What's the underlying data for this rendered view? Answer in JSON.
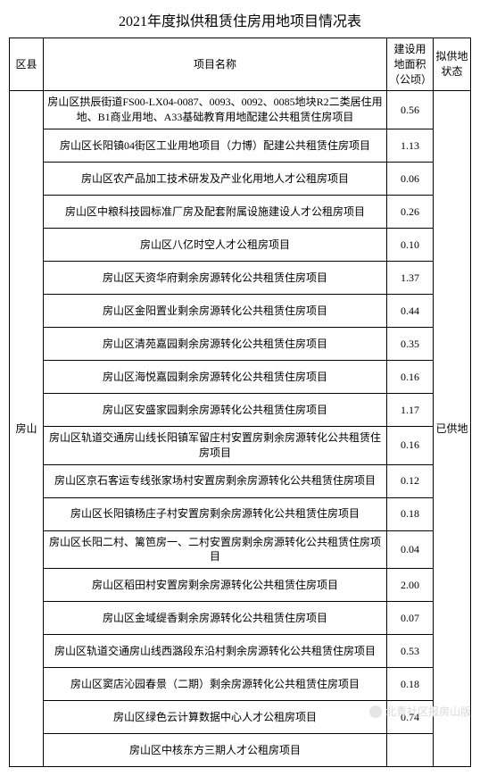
{
  "title": "2021年度拟供租赁住房用地项目情况表",
  "headers": {
    "district": "区县",
    "project": "项目名称",
    "area": "建设用地面积（公顷）",
    "status": "拟供地状态"
  },
  "district": "房山",
  "status": "已供地",
  "rows": [
    {
      "name": "房山区拱辰街道FS00-LX04-0087、0093、0092、0085地块R2二类居住用地、B1商业用地、A33基础教育用地配建公共租赁住房项目",
      "area": "0.56"
    },
    {
      "name": "房山区长阳镇04街区工业用地项目（力博）配建公共租赁住房项目",
      "area": "1.13"
    },
    {
      "name": "房山区农产品加工技术研发及产业化用地人才公租房项目",
      "area": "0.06"
    },
    {
      "name": "房山区中粮科技园标准厂房及配套附属设施建设人才公租房项目",
      "area": "0.26"
    },
    {
      "name": "房山区八亿时空人才公租房项目",
      "area": "0.10"
    },
    {
      "name": "房山区天资华府剩余房源转化公共租赁住房项目",
      "area": "1.37"
    },
    {
      "name": "房山区金阳置业剩余房源转化公共租赁住房项目",
      "area": "0.44"
    },
    {
      "name": "房山区清苑嘉园剩余房源转化公共租赁住房项目",
      "area": "0.35"
    },
    {
      "name": "房山区海悦嘉园剩余房源转化公共租赁住房项目",
      "area": "0.16"
    },
    {
      "name": "房山区安盛家园剩余房源转化公共租赁住房项目",
      "area": "1.17"
    },
    {
      "name": "房山区轨道交通房山线长阳镇军留庄村安置房剩余房源转化公共租赁住房项目",
      "area": "0.16"
    },
    {
      "name": "房山区京石客运专线张家场村安置房剩余房源转化公共租赁住房项目",
      "area": "0.12"
    },
    {
      "name": "房山区长阳镇杨庄子村安置房剩余房源转化公共租赁住房项目",
      "area": "0.18"
    },
    {
      "name": "房山区长阳二村、篱笆房一、二村安置房剩余房源转化公共租赁住房项目",
      "area": "0.04"
    },
    {
      "name": "房山区稻田村安置房剩余房源转化公共租赁住房项目",
      "area": "2.00"
    },
    {
      "name": "房山区金域缇香剩余房源转化公共租赁住房项目",
      "area": "0.07"
    },
    {
      "name": "房山区轨道交通房山线西潞段东沿村剩余房源转化公共租赁住房项目",
      "area": "0.53"
    },
    {
      "name": "房山区窦店沁园春景（二期）剩余房源转化公共租赁住房项目",
      "area": "0.18"
    },
    {
      "name": "房山区绿色云计算数据中心人才公租房项目",
      "area": "0.74"
    },
    {
      "name": "房山区中核东方三期人才公租房项目",
      "area": ""
    }
  ],
  "watermark": "北青社区报房山版"
}
